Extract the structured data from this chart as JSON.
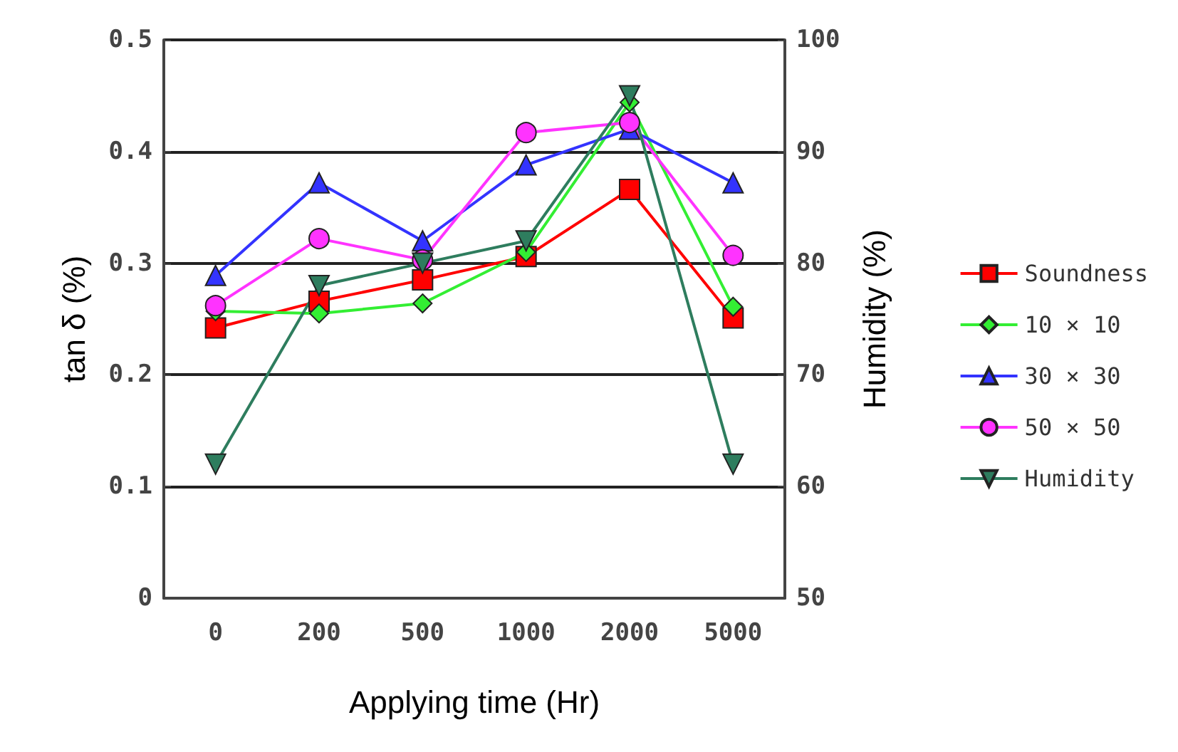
{
  "chart_data": {
    "type": "line",
    "xlabel": "Applying time (Hr)",
    "ylabel": "tan δ (%)",
    "y2label": "Humidity (%)",
    "categories": [
      "0",
      "200",
      "500",
      "1000",
      "2000",
      "5000"
    ],
    "ylim": [
      0,
      0.5
    ],
    "yticks": [
      0,
      0.1,
      0.2,
      0.3,
      0.4,
      0.5
    ],
    "y2lim": [
      50,
      100
    ],
    "y2ticks": [
      50,
      60,
      70,
      80,
      90,
      100
    ],
    "grid": "y",
    "legend": "right",
    "series": [
      {
        "name": "Soundness",
        "color": "#ff0000",
        "marker": "square",
        "values": [
          0.242,
          0.266,
          0.285,
          0.306,
          0.366,
          0.251
        ]
      },
      {
        "name": "10 × 10",
        "color": "#33ee33",
        "marker": "diamond",
        "values": [
          0.257,
          0.255,
          0.264,
          0.31,
          0.444,
          0.261
        ]
      },
      {
        "name": "30 × 30",
        "color": "#3333ff",
        "marker": "triangle",
        "values": [
          0.289,
          0.372,
          0.32,
          0.388,
          0.42,
          0.372
        ]
      },
      {
        "name": "50 × 50",
        "color": "#ff33ff",
        "marker": "circle",
        "values": [
          0.262,
          0.322,
          0.303,
          0.417,
          0.426,
          0.307
        ]
      },
      {
        "name": "Humidity",
        "color": "#2e7d5e",
        "marker": "triangle-down",
        "axis": "y2",
        "values": [
          62,
          78,
          80,
          82,
          95,
          62
        ]
      }
    ]
  }
}
